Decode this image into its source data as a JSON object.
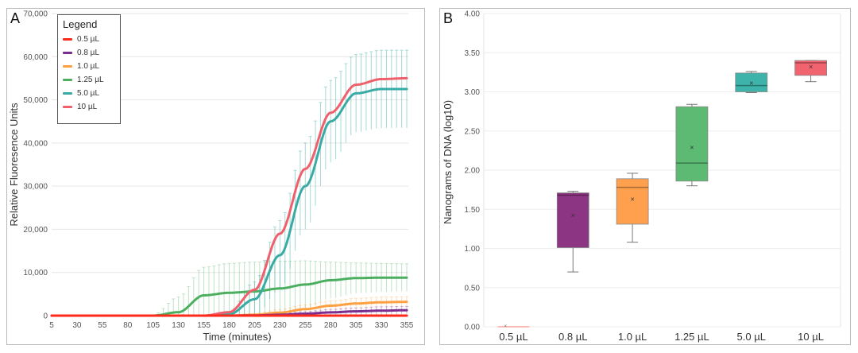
{
  "chart_data": [
    {
      "panel": "A",
      "type": "line",
      "title": "",
      "xlabel": "Time (minutes)",
      "ylabel": "Relative Fluoresence Units",
      "xlim": [
        5,
        355
      ],
      "ylim": [
        0,
        70000
      ],
      "xticks": [
        5,
        30,
        55,
        80,
        105,
        130,
        155,
        180,
        205,
        230,
        255,
        280,
        305,
        330,
        355
      ],
      "xtick_labels": [
        "5",
        "30",
        "55",
        "80",
        "105",
        "130",
        "155",
        "180",
        "205",
        "230",
        "255",
        "280",
        "305",
        "330",
        "355"
      ],
      "yticks": [
        0,
        10000,
        20000,
        30000,
        40000,
        50000,
        60000,
        70000
      ],
      "ytick_labels": [
        "0",
        "10,000",
        "20,000",
        "30,000",
        "40,000",
        "50,000",
        "60,000",
        "70,000"
      ],
      "grid": true,
      "legend": {
        "title": "Legend",
        "placement": "top-left"
      },
      "x": [
        5,
        30,
        55,
        80,
        105,
        130,
        155,
        180,
        205,
        230,
        255,
        280,
        305,
        330,
        355
      ],
      "series": [
        {
          "name": "0.5 µL",
          "color": "#ff2a1a",
          "values": [
            0,
            0,
            0,
            0,
            0,
            0,
            0,
            0,
            0,
            0,
            0,
            0,
            0,
            0,
            0
          ],
          "error": [
            0,
            0,
            0,
            0,
            0,
            0,
            0,
            0,
            0,
            0,
            0,
            0,
            0,
            0,
            0
          ]
        },
        {
          "name": "0.8 µL",
          "color": "#7b2d8e",
          "values": [
            0,
            0,
            0,
            0,
            0,
            0,
            0,
            0,
            50,
            200,
            450,
            750,
            1000,
            1150,
            1250
          ],
          "error": [
            0,
            0,
            0,
            0,
            0,
            0,
            0,
            0,
            100,
            300,
            500,
            700,
            800,
            900,
            900
          ]
        },
        {
          "name": "1.0 µL",
          "color": "#ffa040",
          "values": [
            0,
            0,
            0,
            0,
            0,
            0,
            0,
            0,
            200,
            700,
            1500,
            2300,
            2800,
            3100,
            3200
          ],
          "error": [
            0,
            0,
            0,
            0,
            0,
            0,
            0,
            0,
            300,
            700,
            1000,
            1100,
            1200,
            1200,
            1200
          ]
        },
        {
          "name": "1.25 µL",
          "color": "#4caf60",
          "values": [
            0,
            0,
            0,
            0,
            0,
            800,
            4700,
            5300,
            5600,
            6300,
            7200,
            8200,
            8700,
            8800,
            8800
          ],
          "error": [
            0,
            0,
            0,
            0,
            200,
            3500,
            6500,
            6800,
            6800,
            6300,
            5500,
            4200,
            3500,
            3300,
            3200
          ]
        },
        {
          "name": "5.0 µL",
          "color": "#3aaba4",
          "values": [
            0,
            0,
            0,
            0,
            0,
            0,
            0,
            300,
            3800,
            14000,
            30000,
            45000,
            51500,
            52500,
            52500
          ],
          "error": [
            0,
            0,
            0,
            0,
            0,
            0,
            0,
            600,
            4000,
            8000,
            10000,
            9500,
            9000,
            9000,
            9000
          ]
        },
        {
          "name": "10 µL",
          "color": "#f0606c",
          "values": [
            0,
            0,
            0,
            0,
            0,
            0,
            0,
            800,
            6000,
            19000,
            34000,
            47000,
            53500,
            54800,
            55000
          ],
          "error": [
            0,
            0,
            0,
            0,
            0,
            0,
            0,
            600,
            3500,
            6000,
            6500,
            5500,
            4500,
            4000,
            4000
          ]
        }
      ]
    },
    {
      "panel": "B",
      "type": "box",
      "title": "",
      "xlabel": "",
      "ylabel": "Nanograms of DNA (log10)",
      "ylim": [
        0,
        4
      ],
      "yticks": [
        0,
        0.5,
        1.0,
        1.5,
        2.0,
        2.5,
        3.0,
        3.5,
        4.0
      ],
      "ytick_labels": [
        "0.00",
        "0.50",
        "1.00",
        "1.50",
        "2.00",
        "2.50",
        "3.00",
        "3.50",
        "4.00"
      ],
      "grid": true,
      "categories": [
        "0.5 µL",
        "0.8 µL",
        "1.0 µL",
        "1.25 µL",
        "5.0 µL",
        "10 µL"
      ],
      "boxes": [
        {
          "name": "0.5 µL",
          "color": "#ff2a1a",
          "min": 0,
          "q1": 0,
          "median": 0,
          "q3": 0,
          "max": 0,
          "mean": 0
        },
        {
          "name": "0.8 µL",
          "color": "#8c3582",
          "min": 0.7,
          "q1": 1.01,
          "median": 1.68,
          "q3": 1.71,
          "max": 1.73,
          "mean": 1.42
        },
        {
          "name": "1.0 µL",
          "color": "#ffa04e",
          "min": 1.08,
          "q1": 1.31,
          "median": 1.78,
          "q3": 1.89,
          "max": 1.96,
          "mean": 1.63
        },
        {
          "name": "1.25 µL",
          "color": "#5dba72",
          "min": 1.8,
          "q1": 1.86,
          "median": 2.09,
          "q3": 2.81,
          "max": 2.84,
          "mean": 2.29
        },
        {
          "name": "5.0 µL",
          "color": "#3db3aa",
          "min": 2.99,
          "q1": 3.0,
          "median": 3.08,
          "q3": 3.24,
          "max": 3.26,
          "mean": 3.11
        },
        {
          "name": "10 µL",
          "color": "#f0636f",
          "min": 3.13,
          "q1": 3.21,
          "median": 3.37,
          "q3": 3.4,
          "max": 3.4,
          "mean": 3.32
        }
      ]
    }
  ],
  "panels": {
    "a_label": "A",
    "b_label": "B"
  }
}
